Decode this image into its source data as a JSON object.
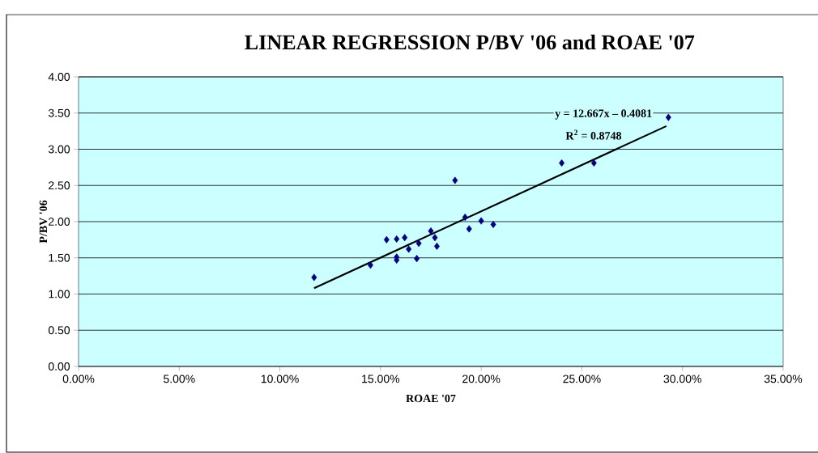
{
  "chart_data": {
    "type": "scatter",
    "title": "LINEAR REGRESSION P/BV '06 and ROAE '07",
    "xlabel": "ROAE '07",
    "ylabel": "P/BV '06",
    "annotations": [
      "y = 12.667x – 0.4081",
      "R$^{2}$ = 0.8748"
    ],
    "series": [
      {
        "color": "#000080",
        "marker": "diamond",
        "x": [
          11.7,
          14.5,
          15.3,
          15.8,
          16.2,
          15.8,
          15.8,
          16.4,
          16.9,
          16.8,
          17.5,
          17.7,
          17.8,
          18.7,
          19.2,
          19.4,
          20.0,
          20.6,
          24.0,
          25.6,
          29.3
        ],
        "values": [
          1.23,
          1.4,
          1.75,
          1.76,
          1.78,
          1.51,
          1.47,
          1.62,
          1.7,
          1.49,
          1.87,
          1.78,
          1.66,
          2.57,
          2.06,
          1.9,
          2.01,
          1.96,
          2.81,
          2.81,
          3.44
        ]
      },
      {
        "type": "line",
        "color": "#000000",
        "x": [
          11.7,
          29.2
        ],
        "values": [
          1.08,
          3.32
        ]
      }
    ],
    "xlim": [
      0,
      35
    ],
    "ylim": [
      0,
      4
    ],
    "xticks": [
      {
        "value": 0,
        "label": "0.00%"
      },
      {
        "value": 5,
        "label": "5.00%"
      },
      {
        "value": 10,
        "label": "10.00%"
      },
      {
        "value": 15,
        "label": "15.00%"
      },
      {
        "value": 20,
        "label": "20.00%"
      },
      {
        "value": 25,
        "label": "25.00%"
      },
      {
        "value": 30,
        "label": "30.00%"
      },
      {
        "value": 35,
        "label": "35.00%"
      }
    ],
    "yticks": [
      {
        "value": 0,
        "label": "0.00"
      },
      {
        "value": 0.5,
        "label": "0.50"
      },
      {
        "value": 1,
        "label": "1.00"
      },
      {
        "value": 1.5,
        "label": "1.50"
      },
      {
        "value": 2,
        "label": "2.00"
      },
      {
        "value": 2.5,
        "label": "2.50"
      },
      {
        "value": 3,
        "label": "3.00"
      },
      {
        "value": 3.5,
        "label": "3.50"
      },
      {
        "value": 4,
        "label": "4.00"
      }
    ],
    "grid": "y"
  }
}
